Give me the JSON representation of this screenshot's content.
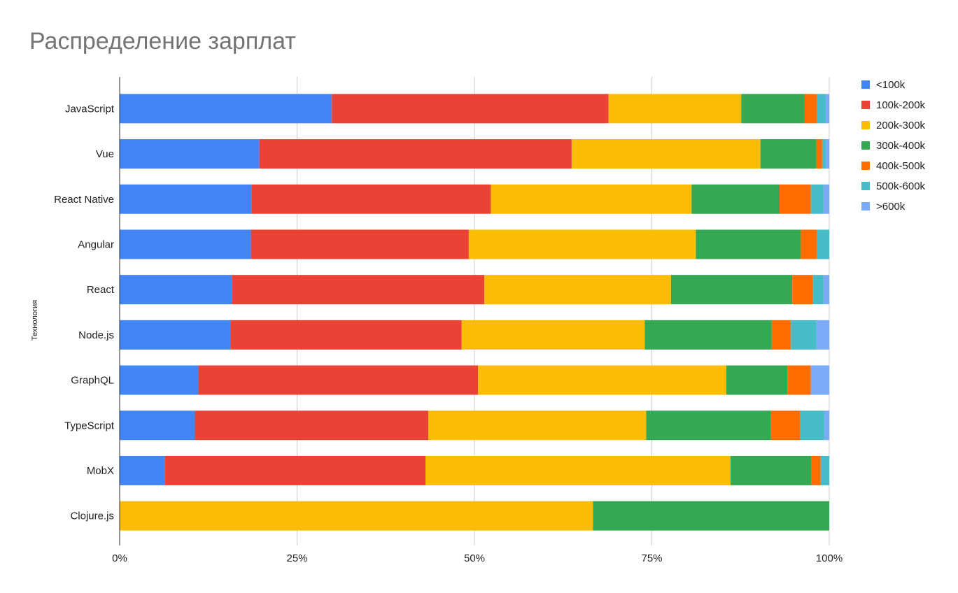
{
  "chart_data": {
    "type": "bar",
    "orientation": "horizontal",
    "stacked": "percent",
    "title": "Распределение зарплат",
    "xlabel": "",
    "ylabel": "Технология",
    "xlim": [
      0,
      100
    ],
    "x_ticks": [
      "0%",
      "25%",
      "50%",
      "75%",
      "100%"
    ],
    "grid": true,
    "legend_position": "right",
    "categories": [
      "JavaScript",
      "Vue",
      "React Native",
      "Angular",
      "React",
      "Node.js",
      "GraphQL",
      "TypeScript",
      "MobX",
      "Clojure.js"
    ],
    "series": [
      {
        "name": "<100k",
        "color": "#4285F4",
        "values": [
          29.9,
          19.7,
          18.6,
          18.5,
          15.8,
          15.6,
          11.1,
          10.6,
          6.4,
          0
        ]
      },
      {
        "name": "100k-200k",
        "color": "#EA4335",
        "values": [
          39.0,
          44.0,
          33.7,
          30.7,
          35.6,
          32.6,
          39.4,
          32.9,
          36.7,
          0
        ]
      },
      {
        "name": "200k-300k",
        "color": "#FBBC04",
        "values": [
          18.7,
          26.6,
          28.3,
          32.0,
          26.3,
          25.8,
          35.0,
          30.7,
          43.0,
          66.7
        ]
      },
      {
        "name": "300k-400k",
        "color": "#34A853",
        "values": [
          8.9,
          7.9,
          12.4,
          14.8,
          17.1,
          17.9,
          8.6,
          17.6,
          11.4,
          33.3
        ]
      },
      {
        "name": "400k-500k",
        "color": "#FF6D01",
        "values": [
          1.8,
          0.8,
          4.4,
          2.3,
          2.9,
          2.7,
          3.3,
          4.1,
          1.3,
          0
        ]
      },
      {
        "name": "500k-600k",
        "color": "#46BDC6",
        "values": [
          1.2,
          0.5,
          1.8,
          1.7,
          1.5,
          3.6,
          0,
          3.4,
          1.2,
          0
        ]
      },
      {
        "name": ">600k",
        "color": "#7BAAF7",
        "values": [
          0.5,
          0.5,
          0.8,
          0,
          0.8,
          1.8,
          2.6,
          0.7,
          0,
          0
        ]
      }
    ]
  }
}
